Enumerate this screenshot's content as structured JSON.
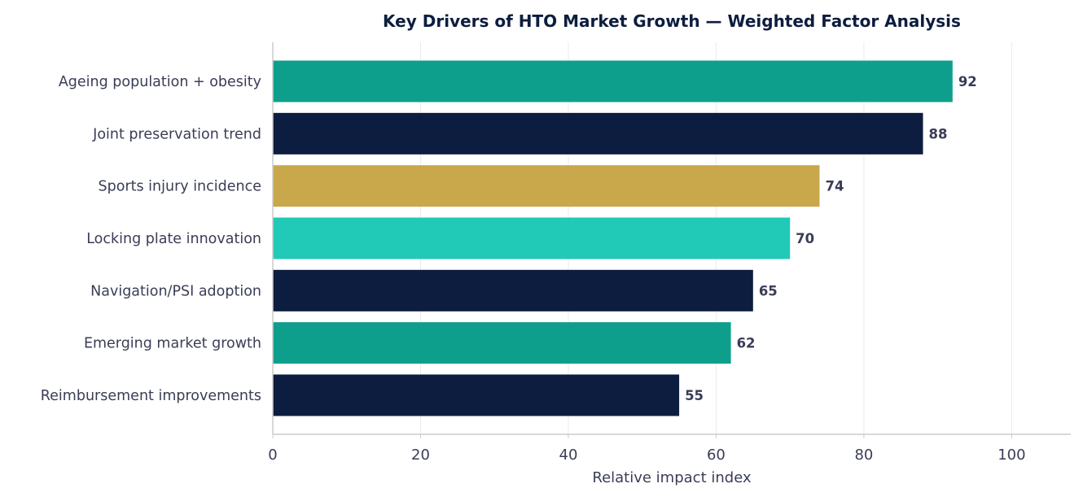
{
  "chart_data": {
    "type": "bar",
    "orientation": "horizontal",
    "title": "Key Drivers of HTO Market Growth — Weighted Factor Analysis",
    "xlabel": "Relative impact index",
    "ylabel": "",
    "categories": [
      "Ageing population + obesity",
      "Joint preservation trend",
      "Sports injury incidence",
      "Locking plate innovation",
      "Navigation/PSI adoption",
      "Emerging market growth",
      "Reimbursement improvements"
    ],
    "values": [
      92,
      88,
      74,
      70,
      65,
      62,
      55
    ],
    "value_labels": [
      "92",
      "88",
      "74",
      "70",
      "65",
      "62",
      "55"
    ],
    "bar_colors": [
      "#0e9f8c",
      "#0d1d3f",
      "#c8a84b",
      "#21c9b7",
      "#0d1d3f",
      "#0e9f8c",
      "#0d1d3f"
    ],
    "xlim": [
      0,
      108
    ],
    "xticks": [
      0,
      20,
      40,
      60,
      80,
      100
    ],
    "xtick_labels": [
      "0",
      "20",
      "40",
      "60",
      "80",
      "100"
    ],
    "grid": "vertical",
    "legend": "none"
  },
  "style": {
    "title_color": "#0d1d3f",
    "text_color": "#3a3d56",
    "grid_color": "#ebebeb",
    "axis_color": "#cccccc"
  }
}
